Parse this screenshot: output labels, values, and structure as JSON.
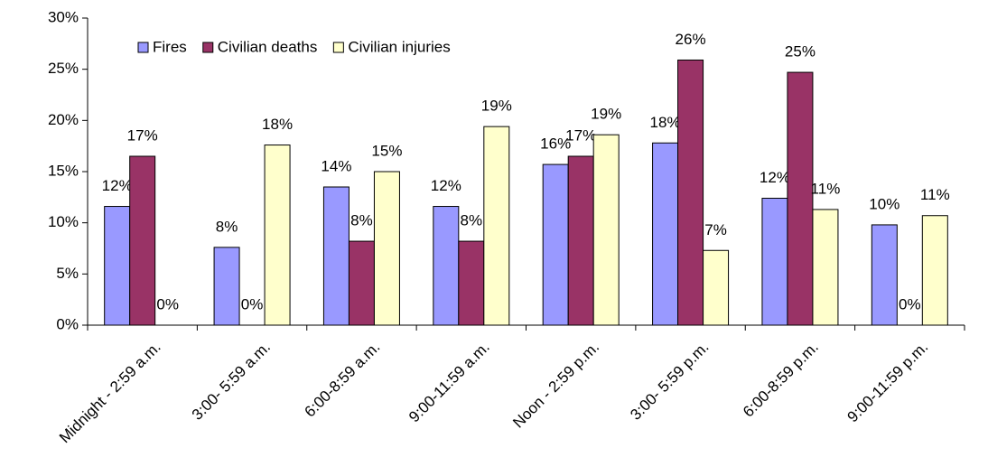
{
  "chart_data": {
    "type": "bar",
    "categories": [
      "Midnight - 2:59 a.m.",
      "3:00- 5:59 a.m.",
      "6:00-8:59 a.m.",
      "9:00-11:59 a.m.",
      "Noon - 2:59 p.m.",
      "3:00- 5:59 p.m.",
      "6:00-8:59 p.m.",
      "9:00-11:59 p.m."
    ],
    "series": [
      {
        "name": "Fires",
        "color": "#9999ff",
        "values": [
          11.6,
          7.6,
          13.5,
          11.6,
          15.7,
          17.8,
          12.4,
          9.8
        ],
        "value_labels": [
          "12%",
          "8%",
          "14%",
          "12%",
          "16%",
          "18%",
          "12%",
          "10%"
        ]
      },
      {
        "name": "Civilian deaths",
        "color": "#993366",
        "values": [
          16.5,
          0,
          8.2,
          8.2,
          16.5,
          25.9,
          24.7,
          0
        ],
        "value_labels": [
          "17%",
          "0%",
          "8%",
          "8%",
          "17%",
          "26%",
          "25%",
          "0%"
        ]
      },
      {
        "name": "Civilian injuries",
        "color": "#ffffcc",
        "values": [
          0,
          17.6,
          15.0,
          19.4,
          18.6,
          7.3,
          11.3,
          10.7
        ],
        "value_labels": [
          "0%",
          "18%",
          "15%",
          "19%",
          "19%",
          "7%",
          "11%",
          "11%"
        ]
      }
    ],
    "ylim": [
      0,
      30
    ],
    "yticks": [
      {
        "value": 0,
        "label": "0%"
      },
      {
        "value": 5,
        "label": "5%"
      },
      {
        "value": 10,
        "label": "10%"
      },
      {
        "value": 15,
        "label": "15%"
      },
      {
        "value": 20,
        "label": "20%"
      },
      {
        "value": 25,
        "label": "25%"
      },
      {
        "value": 30,
        "label": "30%"
      }
    ],
    "legend": "top-left"
  }
}
